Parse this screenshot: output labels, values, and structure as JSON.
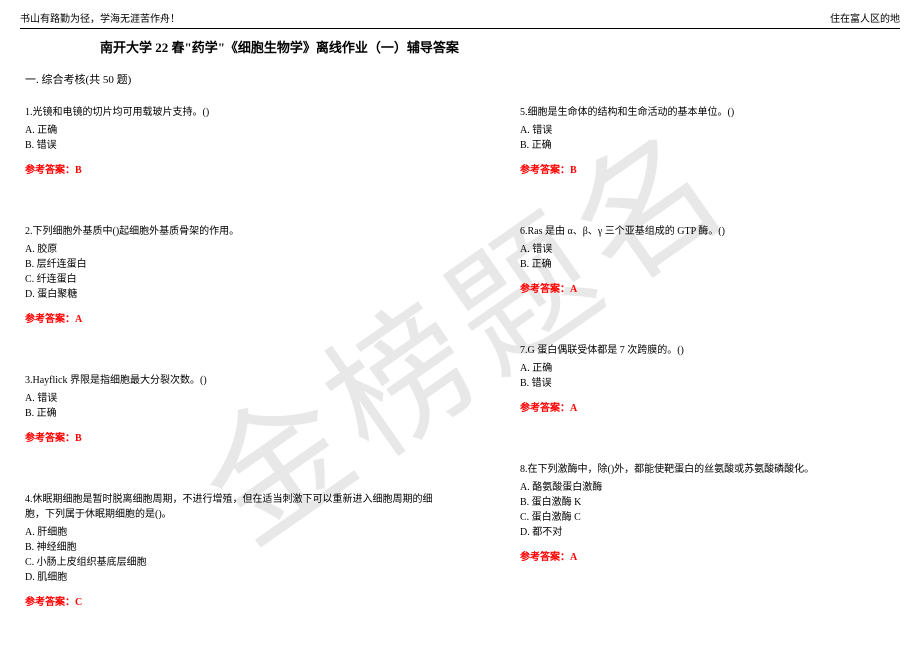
{
  "header": {
    "left": "书山有路勤为径，学海无涯苦作舟！",
    "right": "住在富人区的地"
  },
  "title": "南开大学 22 春\"药学\"《细胞生物学》离线作业（一）辅导答案",
  "section": "一. 综合考核(共 50 题)",
  "watermark": "金榜题名",
  "answer_label": "参考答案：",
  "colors": {
    "text": "#000000",
    "answer": "#ff0000",
    "watermark": "#e8e8e8",
    "background": "#ffffff"
  },
  "left_questions": [
    {
      "num": "1.",
      "text": "光镜和电镜的切片均可用载玻片支持。()",
      "options": [
        "A. 正确",
        "B. 错误"
      ],
      "answer": "B"
    },
    {
      "num": "2.",
      "text": "下列细胞外基质中()起细胞外基质骨架的作用。",
      "options": [
        "A. 胶原",
        "B. 层纤连蛋白",
        "C. 纤连蛋白",
        "D. 蛋白聚糖"
      ],
      "answer": "A"
    },
    {
      "num": "3.",
      "text": "Hayflick 界限是指细胞最大分裂次数。()",
      "options": [
        "A. 错误",
        "B. 正确"
      ],
      "answer": "B"
    },
    {
      "num": "4.",
      "text": "休眠期细胞是暂时脱离细胞周期，不进行增殖，但在适当刺激下可以重新进入细胞周期的细胞，下列属于休眠期细胞的是()。",
      "options": [
        "A. 肝细胞",
        "B. 神经细胞",
        "C. 小肠上皮组织基底层细胞",
        "D. 肌细胞"
      ],
      "answer": "C"
    }
  ],
  "right_questions": [
    {
      "num": "5.",
      "text": "细胞是生命体的结构和生命活动的基本单位。()",
      "options": [
        "A. 错误",
        "B. 正确"
      ],
      "answer": "B"
    },
    {
      "num": "6.",
      "text": "Ras 是由 α、β、γ 三个亚基组成的 GTP 酶。()",
      "options": [
        "A. 错误",
        "B. 正确"
      ],
      "answer": "A"
    },
    {
      "num": "7.",
      "text": "G 蛋白偶联受体都是 7 次跨膜的。()",
      "options": [
        "A. 正确",
        "B. 错误"
      ],
      "answer": "A"
    },
    {
      "num": "8.",
      "text": "在下列激酶中，除()外，都能使靶蛋白的丝氨酸或苏氨酸磷酸化。",
      "options": [
        "A. 酪氨酸蛋白激酶",
        "B. 蛋白激酶 K",
        "C. 蛋白激酶 C",
        "D. 都不对"
      ],
      "answer": "A"
    }
  ]
}
